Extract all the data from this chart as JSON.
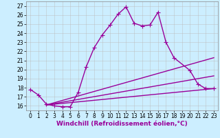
{
  "xlabel": "Windchill (Refroidissement éolien,°C)",
  "bg_color": "#cceeff",
  "line_color": "#990099",
  "grid_color": "#bbbbbb",
  "xlim": [
    -0.5,
    23.5
  ],
  "ylim": [
    15.5,
    27.5
  ],
  "xticks": [
    0,
    1,
    2,
    3,
    4,
    5,
    6,
    7,
    8,
    9,
    10,
    11,
    12,
    13,
    14,
    15,
    16,
    17,
    18,
    19,
    20,
    21,
    22,
    23
  ],
  "yticks": [
    16,
    17,
    18,
    19,
    20,
    21,
    22,
    23,
    24,
    25,
    26,
    27
  ],
  "series": [
    {
      "x": [
        0,
        1,
        2,
        3,
        4,
        5,
        6,
        7,
        8,
        9,
        10,
        11,
        12,
        13,
        14,
        15,
        16,
        17,
        18,
        19,
        20,
        21,
        22,
        23
      ],
      "y": [
        17.8,
        17.2,
        16.2,
        16.0,
        15.9,
        15.9,
        17.5,
        20.3,
        22.4,
        23.8,
        24.9,
        26.1,
        26.9,
        25.1,
        24.8,
        24.9,
        26.3,
        23.0,
        21.3,
        null,
        19.9,
        18.4,
        17.9,
        17.9
      ],
      "has_markers": true,
      "linewidth": 1.0,
      "markersize": 4
    },
    {
      "x": [
        2,
        23
      ],
      "y": [
        16.1,
        21.3
      ],
      "has_markers": false,
      "linewidth": 1.0
    },
    {
      "x": [
        2,
        23
      ],
      "y": [
        16.1,
        19.3
      ],
      "has_markers": false,
      "linewidth": 1.0
    },
    {
      "x": [
        2,
        23
      ],
      "y": [
        16.1,
        17.9
      ],
      "has_markers": false,
      "linewidth": 1.0
    }
  ],
  "tick_fontsize": 5.5,
  "label_fontsize": 6.5
}
